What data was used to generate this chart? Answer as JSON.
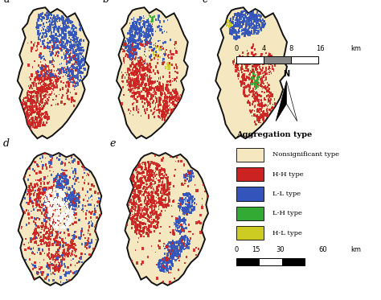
{
  "panels": [
    "a",
    "b",
    "c",
    "d",
    "e"
  ],
  "bg_color": "#ffffff",
  "colors": {
    "nonsignificant": "#F5E8C0",
    "HH": "#CC2222",
    "LL": "#3355BB",
    "LH": "#33AA33",
    "HL": "#CCCC22"
  },
  "legend_title": "Aggregation type",
  "legend_items": [
    [
      "Nonsignificant type",
      "#F5E8C0"
    ],
    [
      "H-H type",
      "#CC2222"
    ],
    [
      "L-L type",
      "#3355BB"
    ],
    [
      "L-H type",
      "#33AA33"
    ],
    [
      "H-L type",
      "#CCCC22"
    ]
  ],
  "border_color": "#111111",
  "panel_label_fontsize": 9
}
